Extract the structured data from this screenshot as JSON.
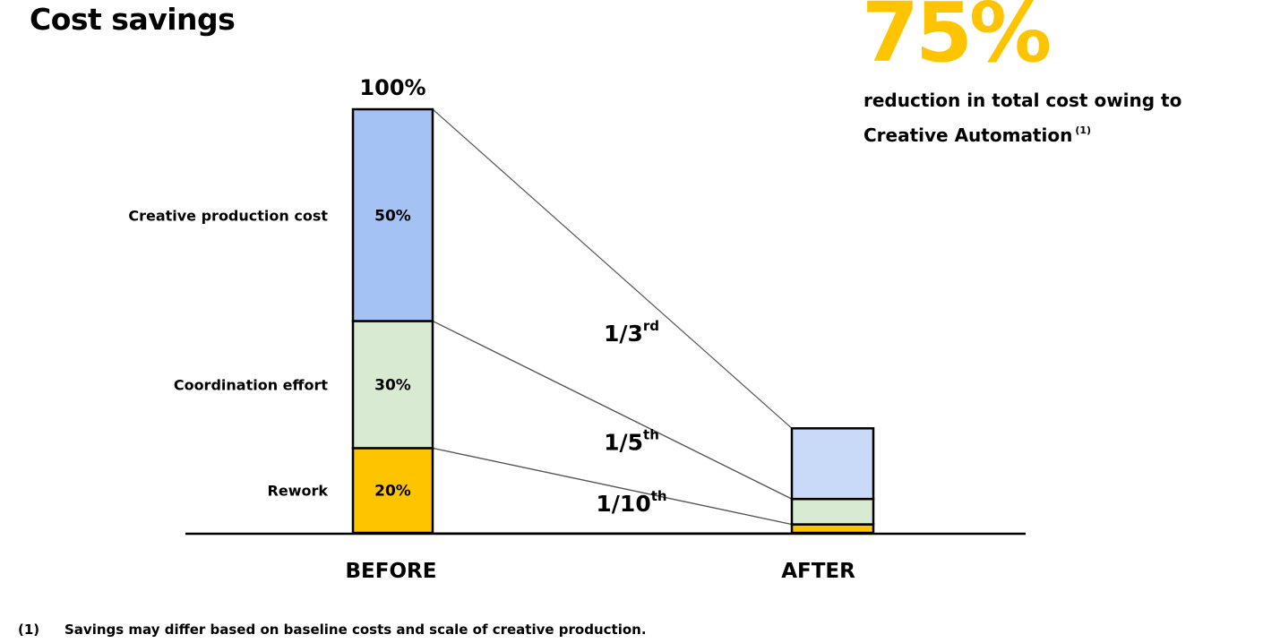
{
  "title": "Cost savings",
  "headline": {
    "value": "75%",
    "description": "reduction in total cost owing to Creative Automation",
    "footnote_ref": "(1)"
  },
  "footnote": {
    "marker": "(1)",
    "text": "Savings may differ based on baseline costs and scale of creative production."
  },
  "colors": {
    "creative": "#A4C2F4",
    "creative_after": "#C9DAF8",
    "coordination": "#D9EAD3",
    "rework": "#FFC400",
    "accent": "#FFC400",
    "stroke": "#000000",
    "connector": "#555555"
  },
  "chart_data": {
    "type": "bar",
    "categories": [
      "BEFORE",
      "AFTER"
    ],
    "stacked": true,
    "total_label": "100%",
    "series": [
      {
        "name": "Rework",
        "before": 20,
        "before_label": "20%",
        "after": 2,
        "reduction_num": "1/10",
        "reduction_sup": "th",
        "color_key": "rework"
      },
      {
        "name": "Coordination effort",
        "before": 30,
        "before_label": "30%",
        "after": 6,
        "reduction_num": "1/5",
        "reduction_sup": "th",
        "color_key": "coordination"
      },
      {
        "name": "Creative production cost",
        "before": 50,
        "before_label": "50%",
        "after": 16.67,
        "reduction_num": "1/3",
        "reduction_sup": "rd",
        "color_key": "creative_after",
        "before_color_key": "creative"
      }
    ]
  }
}
